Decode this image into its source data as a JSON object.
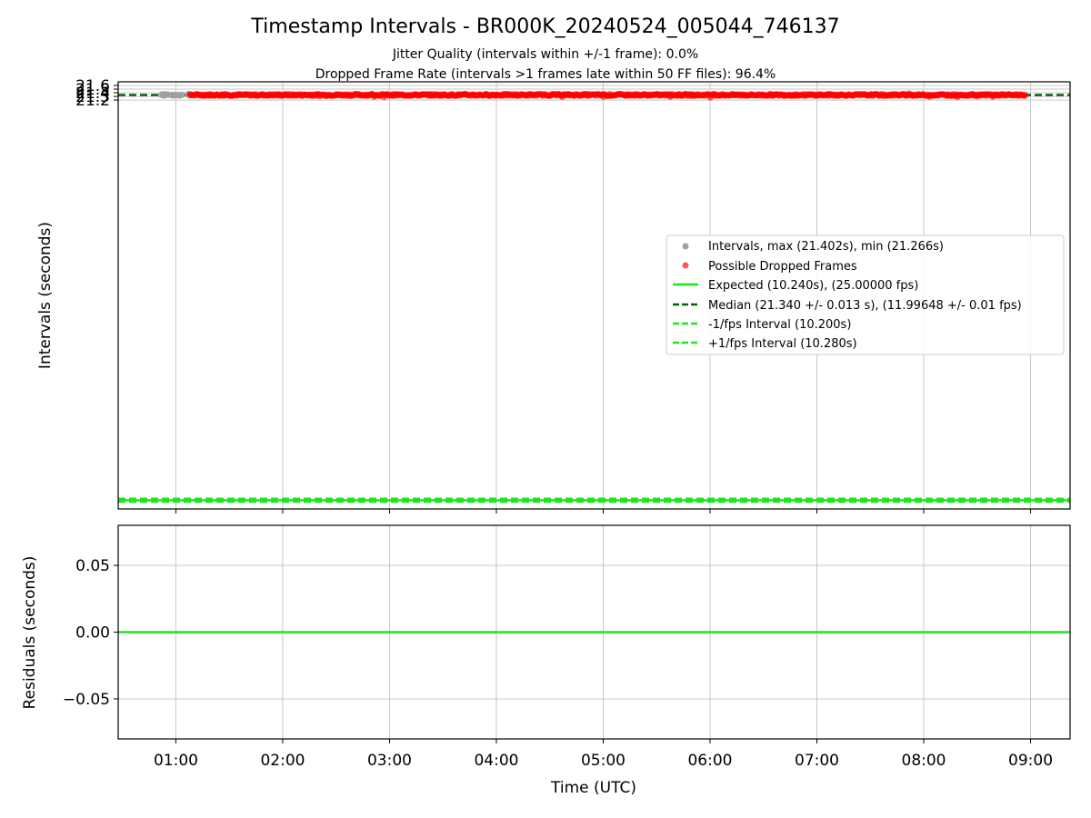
{
  "title": "Timestamp Intervals - BR000K_20240524_005044_746137",
  "subtitle_1": "Jitter Quality (intervals within +/-1 frame): 0.0%",
  "subtitle_2": "Dropped Frame Rate (intervals >1 frames late within 50 FF files): 96.4%",
  "colors": {
    "intervals": "#a0a0a0",
    "dropped": "#ff0000",
    "expected": "#1ee61e",
    "median": "#006400",
    "fps_interval": "#1ee61e",
    "grid": "#c8c8c8"
  },
  "chart_data": [
    {
      "type": "scatter",
      "panel": "top",
      "ylabel": "Intervals (seconds)",
      "xlabel": "",
      "x_units": "hours UTC",
      "xlim": [
        0.46,
        9.37
      ],
      "ylim": [
        10.0,
        21.7
      ],
      "grid": true,
      "legend_position": "center-right",
      "x_ticks": [
        1,
        2,
        3,
        4,
        5,
        6,
        7,
        8,
        9
      ],
      "y_tick_labels_visible": [
        "21.2",
        "21.4",
        "21.6"
      ],
      "y_ticks_cluster": [
        21.2,
        21.3,
        21.4,
        21.5,
        21.6
      ],
      "series": [
        {
          "name": "Intervals, max (21.402s), min (21.266s)",
          "kind": "points",
          "x_range": [
            0.85,
            8.95
          ],
          "y_range": [
            21.266,
            21.402
          ]
        },
        {
          "name": "Possible Dropped Frames",
          "kind": "points",
          "x_range": [
            1.13,
            8.95
          ],
          "y_range": [
            21.266,
            21.402
          ]
        },
        {
          "name": "Expected (10.240s), (25.00000 fps)",
          "kind": "hline",
          "y": 10.24,
          "style": "solid"
        },
        {
          "name": "Median (21.340 +/- 0.013 s), (11.99648 +/- 0.01 fps)",
          "kind": "hline",
          "y": 21.34,
          "style": "dashed"
        },
        {
          "name": "-1/fps Interval (10.200s)",
          "kind": "hline",
          "y": 10.2,
          "style": "dashed"
        },
        {
          "name": "+1/fps Interval (10.280s)",
          "kind": "hline",
          "y": 10.28,
          "style": "dashed"
        }
      ]
    },
    {
      "type": "line",
      "panel": "bottom",
      "ylabel": "Residuals (seconds)",
      "xlabel": "Time (UTC)",
      "xlim": [
        0.46,
        9.37
      ],
      "ylim": [
        -0.08,
        0.08
      ],
      "grid": true,
      "x_ticks": [
        1,
        2,
        3,
        4,
        5,
        6,
        7,
        8,
        9
      ],
      "x_tick_labels": [
        "01:00",
        "02:00",
        "03:00",
        "04:00",
        "05:00",
        "06:00",
        "07:00",
        "08:00",
        "09:00"
      ],
      "y_ticks": [
        -0.05,
        0.0,
        0.05
      ],
      "y_tick_labels": [
        "−0.05",
        "0.00",
        "0.05"
      ],
      "series": [
        {
          "name": "",
          "kind": "hline",
          "y": 0.0,
          "style": "solid"
        }
      ]
    }
  ]
}
